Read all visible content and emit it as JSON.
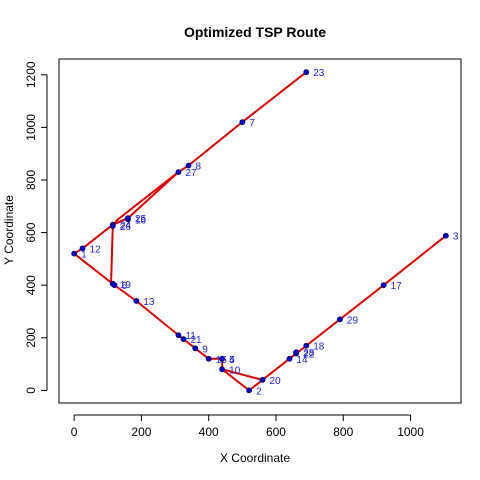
{
  "chart_data": {
    "type": "scatter",
    "title": "Optimized TSP Route",
    "xlabel": "X Coordinate",
    "ylabel": "Y Coordinate",
    "xlim": [
      -45,
      1150
    ],
    "ylim": [
      -48,
      1260
    ],
    "x_ticks": [
      0,
      200,
      400,
      600,
      800,
      1000
    ],
    "y_ticks": [
      0,
      200,
      400,
      600,
      800,
      1000,
      1200
    ],
    "grid": false,
    "colors": {
      "route": "#dd0000",
      "point": "#0000cc",
      "label": "#2222dd",
      "axis": "#000000"
    },
    "points": [
      {
        "id": "2",
        "x": 520,
        "y": 0
      },
      {
        "id": "3",
        "x": 1105,
        "y": 588
      },
      {
        "id": "4",
        "x": 440,
        "y": 120
      },
      {
        "id": "5",
        "x": 440,
        "y": 120
      },
      {
        "id": "8",
        "x": 340,
        "y": 855
      },
      {
        "id": "9",
        "x": 360,
        "y": 160
      },
      {
        "id": "10",
        "x": 440,
        "y": 80
      },
      {
        "id": "11",
        "x": 310,
        "y": 210
      },
      {
        "id": "12",
        "x": 25,
        "y": 540
      },
      {
        "id": "13",
        "x": 185,
        "y": 340
      },
      {
        "id": "14",
        "x": 640,
        "y": 120
      },
      {
        "id": "15",
        "x": 400,
        "y": 120
      },
      {
        "id": "16",
        "x": 160,
        "y": 650
      },
      {
        "id": "17",
        "x": 920,
        "y": 400
      },
      {
        "id": "18",
        "x": 690,
        "y": 170
      },
      {
        "id": "19",
        "x": 115,
        "y": 405
      },
      {
        "id": "20",
        "x": 560,
        "y": 40
      },
      {
        "id": "21",
        "x": 325,
        "y": 195
      },
      {
        "id": "22",
        "x": 660,
        "y": 140
      },
      {
        "id": "23",
        "x": 690,
        "y": 1210
      },
      {
        "id": "24",
        "x": 115,
        "y": 630
      },
      {
        "id": "25",
        "x": 160,
        "y": 655
      },
      {
        "id": "26",
        "x": 115,
        "y": 625
      },
      {
        "id": "27",
        "x": 310,
        "y": 830
      },
      {
        "id": "28",
        "x": 660,
        "y": 145
      },
      {
        "id": "29",
        "x": 790,
        "y": 270
      },
      {
        "id": "6",
        "x": 120,
        "y": 400
      },
      {
        "id": "7",
        "x": 500,
        "y": 1020
      },
      {
        "id": "1",
        "x": 0,
        "y": 520
      }
    ],
    "route": [
      [
        0,
        520
      ],
      [
        25,
        540
      ],
      [
        115,
        630
      ],
      [
        160,
        655
      ],
      [
        310,
        830
      ],
      [
        340,
        855
      ],
      [
        500,
        1020
      ],
      [
        690,
        1210
      ],
      [
        500,
        1020
      ],
      [
        340,
        855
      ],
      [
        310,
        830
      ],
      [
        130,
        650
      ],
      [
        115,
        625
      ],
      [
        110,
        415
      ],
      [
        120,
        400
      ],
      [
        0,
        520
      ],
      [
        120,
        400
      ],
      [
        185,
        340
      ],
      [
        310,
        210
      ],
      [
        325,
        195
      ],
      [
        360,
        160
      ],
      [
        400,
        120
      ],
      [
        440,
        120
      ],
      [
        440,
        80
      ],
      [
        560,
        40
      ],
      [
        440,
        80
      ],
      [
        520,
        0
      ],
      [
        640,
        120
      ],
      [
        660,
        140
      ],
      [
        690,
        170
      ],
      [
        790,
        270
      ],
      [
        920,
        400
      ],
      [
        1105,
        588
      ]
    ]
  }
}
